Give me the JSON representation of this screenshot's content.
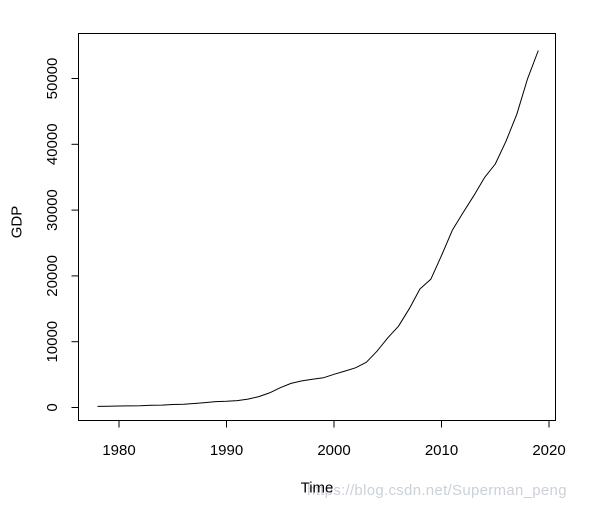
{
  "watermark": {
    "text": "https://blog.csdn.net/Superman_peng",
    "color": "#ccd1d8"
  },
  "colors": {
    "background": "#ffffff",
    "axis": "#000000",
    "text": "#000000",
    "line": "#000000"
  },
  "chart_data": {
    "type": "line",
    "title": "",
    "xlabel": "Time",
    "ylabel": "GDP",
    "grid": false,
    "legend": "none",
    "xlim": [
      1976.4,
      2020.6
    ],
    "ylim": [
      -2000,
      56400
    ],
    "x_tick_years": [
      1980,
      1990,
      2000,
      2010,
      2020
    ],
    "x_tick_labels": [
      "1980",
      "1990",
      "2000",
      "2010",
      "2020"
    ],
    "y_tick_values": [
      0,
      10000,
      20000,
      30000,
      40000,
      50000
    ],
    "y_tick_labels": [
      "0",
      "10000",
      "20000",
      "30000",
      "40000",
      "50000"
    ],
    "series": [
      {
        "name": "GDP",
        "x": [
          1978,
          1979,
          1980,
          1981,
          1982,
          1983,
          1984,
          1985,
          1986,
          1987,
          1988,
          1989,
          1990,
          1991,
          1992,
          1993,
          1994,
          1995,
          1996,
          1997,
          1998,
          1999,
          2000,
          2001,
          2002,
          2003,
          2004,
          2005,
          2006,
          2007,
          2008,
          2009,
          2010,
          2011,
          2012,
          2013,
          2014,
          2015,
          2016,
          2017,
          2018,
          2019
        ],
        "y": [
          163,
          193,
          229,
          250,
          263,
          328,
          370,
          452,
          504,
          611,
          749,
          893,
          935,
          1046,
          1280,
          1663,
          2217,
          3003,
          3661,
          4041,
          4308,
          4518,
          5053,
          5533,
          6035,
          6868,
          8554,
          10587,
          12363,
          15012,
          18019,
          19480,
          23092,
          26931,
          29599,
          32191,
          34938,
          37002,
          40472,
          44553,
          49936,
          54259
        ]
      }
    ]
  }
}
